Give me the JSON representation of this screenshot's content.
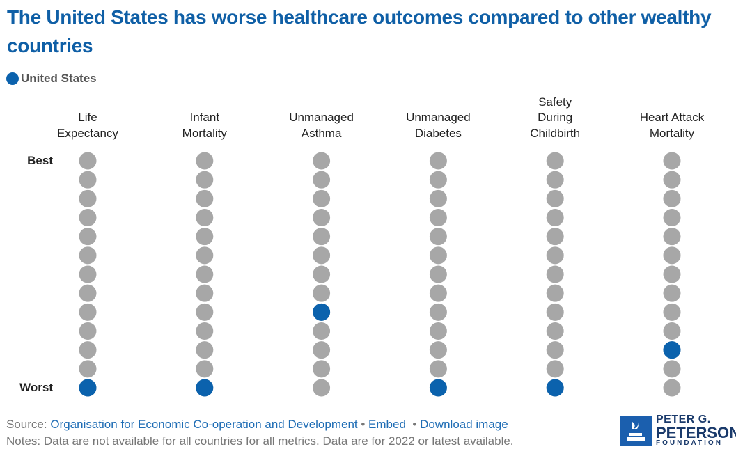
{
  "chart_data": {
    "type": "rank-dot",
    "title": "The United States has worse healthcare outcomes compared to other wealthy countries",
    "categories": [
      "Life Expectancy",
      "Infant Mortality",
      "Unmanaged Asthma",
      "Unmanaged Diabetes",
      "Safety During Childbirth",
      "Heart Attack Mortality"
    ],
    "series": [
      {
        "name": "United States",
        "color": "#0b62ad",
        "values": [
          13,
          13,
          9,
          13,
          13,
          11
        ]
      }
    ],
    "other_color": "#a7a7a7",
    "ylim": [
      1,
      13
    ],
    "yticks": [
      {
        "value": 1,
        "label": "Best"
      },
      {
        "value": 13,
        "label": "Worst"
      }
    ]
  },
  "footer": {
    "source_label": "Source:",
    "source": "Organisation for Economic Co-operation and Development",
    "embed": "Embed",
    "download": "Download image",
    "notes": "Notes: Data are not available for all countries for all metrics. Data are for 2022 or latest available."
  },
  "logo": {
    "line1": "PETER G.",
    "line2": "PETERSON",
    "line3": "FOUNDATION"
  }
}
